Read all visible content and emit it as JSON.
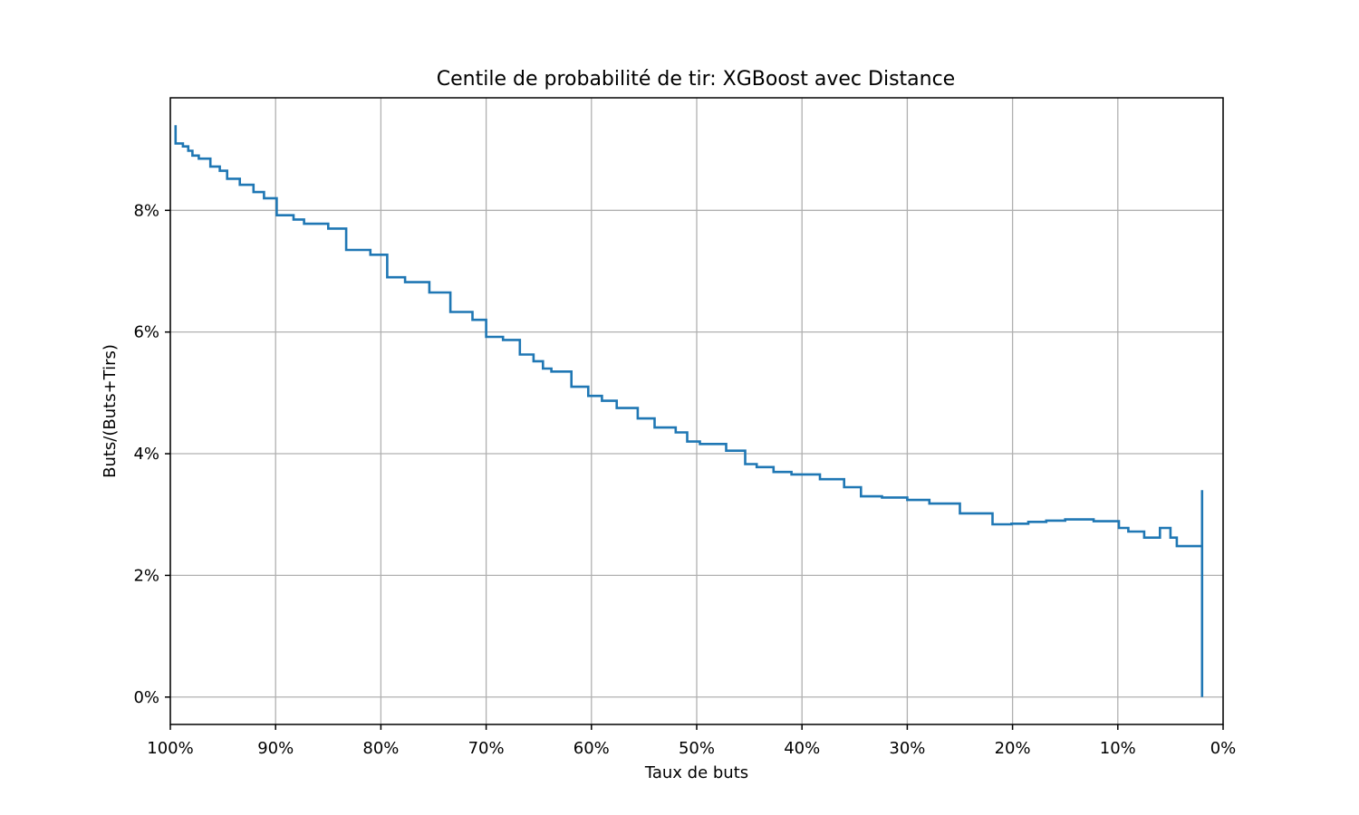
{
  "chart_data": {
    "type": "line",
    "drawstyle": "steps",
    "title": "Centile de probabilité de tir: XGBoost avec Distance",
    "xlabel": "Taux de buts",
    "ylabel": "Buts/(Buts+Tirs)",
    "xlim": [
      100,
      0
    ],
    "ylim": [
      -0.45,
      9.85
    ],
    "x_inverted": true,
    "grid": true,
    "color": "#1f77b4",
    "x_ticks": [
      {
        "value": 100,
        "label": "100%"
      },
      {
        "value": 90,
        "label": "90%"
      },
      {
        "value": 80,
        "label": "80%"
      },
      {
        "value": 70,
        "label": "70%"
      },
      {
        "value": 60,
        "label": "60%"
      },
      {
        "value": 50,
        "label": "50%"
      },
      {
        "value": 40,
        "label": "40%"
      },
      {
        "value": 30,
        "label": "30%"
      },
      {
        "value": 20,
        "label": "20%"
      },
      {
        "value": 10,
        "label": "10%"
      },
      {
        "value": 0,
        "label": "0%"
      }
    ],
    "y_ticks": [
      {
        "value": 0,
        "label": "0%"
      },
      {
        "value": 2,
        "label": "2%"
      },
      {
        "value": 4,
        "label": "4%"
      },
      {
        "value": 6,
        "label": "6%"
      },
      {
        "value": 8,
        "label": "8%"
      }
    ],
    "series": [
      {
        "x": [
          99.5,
          99.5,
          98.8,
          98.3,
          97.9,
          97.3,
          96.2,
          95.3,
          94.6,
          93.4,
          92.1,
          91.1,
          89.9,
          88.3,
          87.3,
          85.0,
          83.3,
          81.0,
          79.4,
          77.7,
          75.4,
          73.4,
          71.3,
          70.0,
          68.4,
          66.8,
          65.5,
          64.6,
          63.8,
          61.9,
          60.3,
          59.0,
          57.6,
          55.6,
          54.0,
          52.0,
          50.9,
          49.7,
          47.2,
          45.4,
          44.3,
          42.7,
          41.0,
          38.3,
          36.0,
          34.4,
          32.4,
          30.0,
          27.9,
          25.0,
          21.9,
          20.1,
          18.5,
          16.8,
          15.0,
          12.3,
          9.9,
          9.0,
          7.5,
          6.0,
          5.0,
          4.4,
          2.0,
          2.0,
          2.0
        ],
        "y": [
          9.4,
          9.1,
          9.05,
          8.98,
          8.9,
          8.85,
          8.72,
          8.65,
          8.52,
          8.42,
          8.3,
          8.2,
          7.92,
          7.85,
          7.78,
          7.7,
          7.35,
          7.27,
          6.9,
          6.82,
          6.65,
          6.33,
          6.2,
          5.92,
          5.87,
          5.63,
          5.52,
          5.4,
          5.35,
          5.1,
          4.95,
          4.87,
          4.75,
          4.58,
          4.43,
          4.35,
          4.2,
          4.16,
          4.05,
          3.83,
          3.78,
          3.7,
          3.66,
          3.58,
          3.45,
          3.3,
          3.28,
          3.24,
          3.18,
          3.02,
          2.84,
          2.85,
          2.88,
          2.9,
          2.92,
          2.89,
          2.78,
          2.72,
          2.62,
          2.78,
          2.62,
          2.48,
          2.48,
          3.4,
          0.0
        ]
      }
    ]
  }
}
